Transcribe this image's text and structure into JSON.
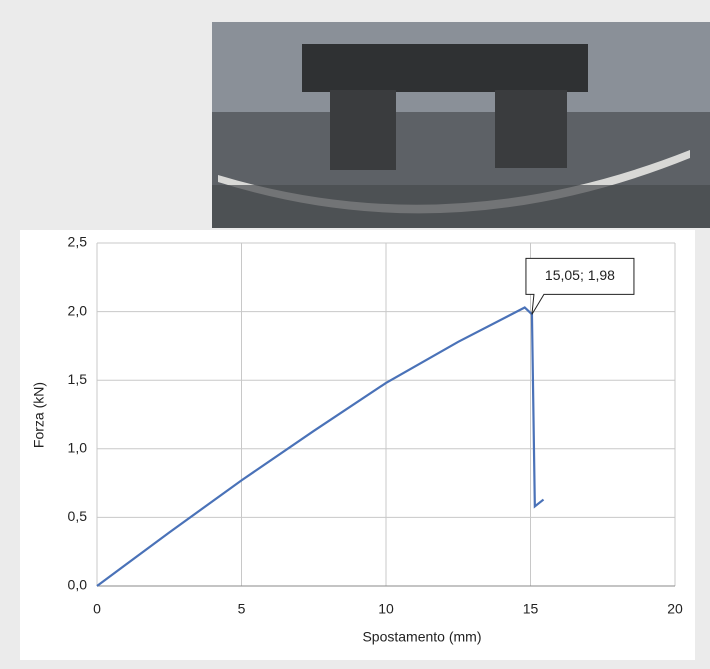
{
  "chart_data": {
    "type": "line",
    "x_label": "Spostamento (mm)",
    "y_label": "Forza (kN)",
    "annotation": "15,05; 1,98",
    "series": [
      {
        "color": "#4a72b8",
        "x": [
          0,
          2.5,
          5,
          7.5,
          10,
          12.5,
          14.8,
          14.95,
          15.05,
          15.15,
          15.45
        ],
        "values": [
          0,
          0.39,
          0.77,
          1.13,
          1.48,
          1.78,
          2.03,
          2.0,
          1.98,
          0.58,
          0.63
        ]
      }
    ],
    "xlim": [
      0,
      20
    ],
    "xticks": [
      0,
      5,
      10,
      15,
      20
    ],
    "ylim": [
      0,
      2.5
    ],
    "yticks": [
      {
        "value": 0,
        "label": "0,0"
      },
      {
        "value": 0.5,
        "label": "0,5"
      },
      {
        "value": 1,
        "label": "1,0"
      },
      {
        "value": 1.5,
        "label": "1,5"
      },
      {
        "value": 2,
        "label": "2,0"
      },
      {
        "value": 2.5,
        "label": "2,5"
      }
    ],
    "grid": true
  }
}
